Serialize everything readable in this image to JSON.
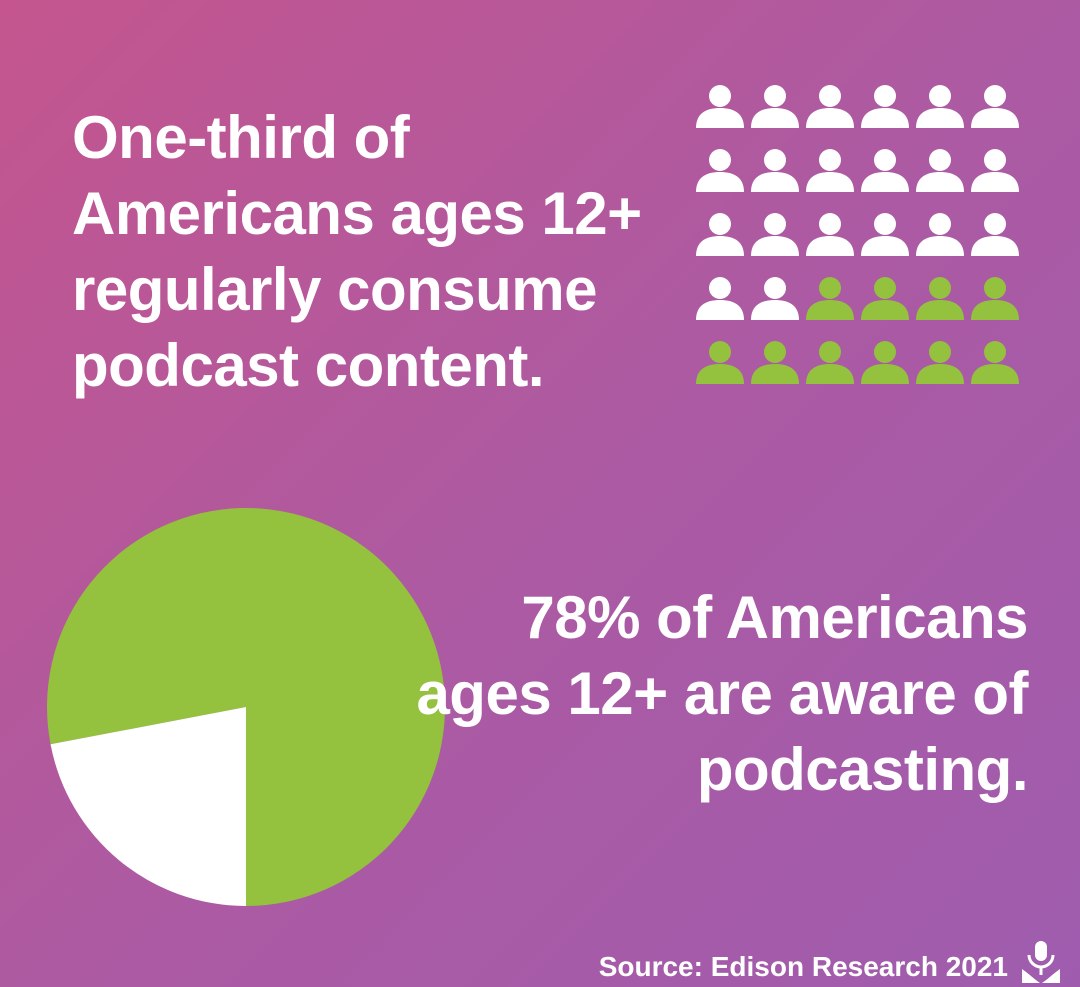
{
  "headline_podcast": "One-third of Americans ages 12+ regularly consume podcast content.",
  "headline_awareness": "78% of Americans ages 12+ are aware of podcasting.",
  "source": "Source: Edison Research 2021",
  "colors": {
    "background_start": "#c4558e",
    "background_end": "#9f5cae",
    "highlight": "#94c13e",
    "neutral": "#ffffff"
  },
  "chart_data": [
    {
      "type": "pictograph",
      "rows": 5,
      "columns": 6,
      "total": 30,
      "highlighted": 10,
      "highlight_color": "#94c13e",
      "base_color": "#ffffff"
    },
    {
      "type": "pie",
      "values": [
        78,
        22
      ],
      "colors": [
        "#94c13e",
        "#ffffff"
      ]
    }
  ],
  "icons": {
    "person": "person-icon",
    "source_logo": "microphone-icon"
  }
}
